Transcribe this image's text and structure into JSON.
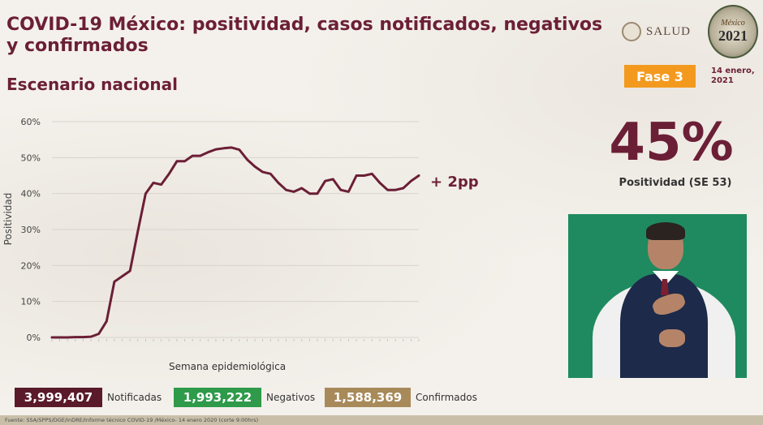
{
  "header": {
    "title": "COVID-19 México: positividad, casos notificados, negativos y confirmados",
    "subtitle": "Escenario nacional",
    "logo_text": "SALUD",
    "logo_year": "2021",
    "logo_country": "México",
    "phase_label": "Fase 3",
    "date_line1": "14 enero,",
    "date_line2": "2021",
    "accent_color": "#6b1f36",
    "phase_color": "#f39a1e"
  },
  "highlight": {
    "value": "45%",
    "caption": "Positividad (SE 53)"
  },
  "chart_data": {
    "type": "line",
    "title": "",
    "xlabel": "Semana epidemiológica",
    "ylabel": "Positividad",
    "ylim": [
      0,
      60
    ],
    "y_ticks": [
      "0%",
      "10%",
      "20%",
      "30%",
      "40%",
      "50%",
      "60%"
    ],
    "grid": true,
    "annotation": "+ 2pp",
    "line_color": "#6b1f36",
    "series": [
      {
        "values": [
          0,
          0,
          0,
          0.1,
          0.1,
          0.2,
          1,
          4.5,
          15.5,
          17,
          18.5,
          29.5,
          40,
          43,
          42.5,
          45.5,
          49,
          49,
          50.5,
          50.5,
          51.5,
          52.3,
          52.6,
          52.8,
          52.2,
          49.5,
          47.5,
          46,
          45.5,
          43,
          41,
          40.5,
          41.5,
          40,
          40,
          43.5,
          44,
          41,
          40.5,
          45,
          45,
          45.5,
          43,
          41,
          41,
          41.5,
          43.5,
          45
        ]
      }
    ]
  },
  "stats": [
    {
      "value": "3,999,407",
      "label": "Notificadas",
      "color": "#5a1a2a"
    },
    {
      "value": "1,993,222",
      "label": "Negativos",
      "color": "#2e9a4a"
    },
    {
      "value": "1,588,369",
      "label": "Confirmados",
      "color": "#a88a5a"
    }
  ],
  "footer": {
    "source": "Fuente: SSA/SPPS/DGE/InDRE/Informe técnico COVID-19 /México- 14 enero 2020 (corte 9:00hrs)"
  }
}
